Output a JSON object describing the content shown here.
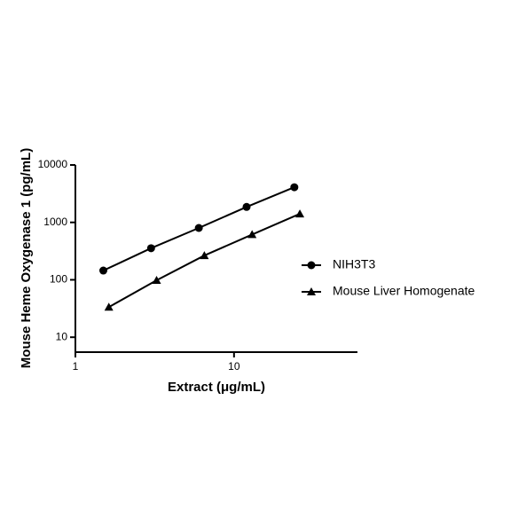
{
  "chart_data": {
    "type": "line",
    "x_label": "Extract (μg/mL)",
    "y_label": "Mouse Heme Oxygenase 1 (pg/mL)",
    "x_scale": "log",
    "y_scale": "log",
    "xlim": [
      1,
      60
    ],
    "ylim": [
      5.5,
      10000
    ],
    "xticks": [
      1,
      10
    ],
    "yticks": [
      10,
      100,
      1000,
      10000
    ],
    "series": [
      {
        "name": "NIH3T3",
        "color": "#000000",
        "marker": "circle",
        "x": [
          1.5,
          3,
          6,
          12,
          24
        ],
        "values": [
          145,
          355,
          800,
          1860,
          4100
        ]
      },
      {
        "name": "Mouse Liver Homogenate",
        "color": "#000000",
        "marker": "triangle",
        "x": [
          1.625,
          3.25,
          6.5,
          13,
          26
        ],
        "values": [
          33.5,
          98,
          265,
          615,
          1410
        ]
      }
    ]
  }
}
